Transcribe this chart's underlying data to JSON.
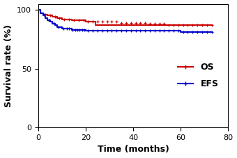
{
  "title": "",
  "xlabel": "Time (months)",
  "ylabel": "Survival rate (%)",
  "xlim": [
    0,
    80
  ],
  "ylim": [
    0,
    105
  ],
  "xticks": [
    0,
    20,
    40,
    60,
    80
  ],
  "yticks": [
    0,
    50,
    100
  ],
  "os_color": "#cc0000",
  "efs_color": "#0000cc",
  "os_km_x": [
    0,
    1,
    1,
    2,
    2,
    4,
    4,
    6,
    6,
    8,
    8,
    10,
    10,
    14,
    14,
    20,
    20,
    24,
    24,
    73
  ],
  "os_km_y": [
    100,
    100,
    97,
    97,
    96,
    96,
    95,
    95,
    94,
    94,
    93,
    93,
    92,
    92,
    91,
    91,
    90,
    90,
    87,
    87
  ],
  "efs_km_x": [
    0,
    1,
    1,
    2,
    2,
    3,
    3,
    4,
    4,
    5,
    5,
    6,
    6,
    7,
    7,
    8,
    8,
    10,
    10,
    14,
    14,
    20,
    20,
    60,
    60,
    73
  ],
  "efs_km_y": [
    100,
    100,
    97,
    97,
    95,
    95,
    93,
    93,
    91,
    91,
    90,
    90,
    88,
    88,
    87,
    87,
    85,
    85,
    84,
    84,
    83,
    83,
    82,
    82,
    81,
    81
  ],
  "os_censors_x": [
    3,
    5,
    7,
    9,
    11,
    13,
    15,
    17,
    19,
    21,
    23,
    25,
    27,
    29,
    31,
    33,
    35,
    37,
    39,
    41,
    43,
    45,
    47,
    49,
    51,
    53,
    55,
    57,
    59,
    61,
    63,
    65,
    67,
    69,
    71,
    73
  ],
  "os_censors_y": [
    96,
    95,
    94,
    93,
    92,
    92,
    91,
    91,
    91,
    90,
    90,
    90,
    90,
    90,
    90,
    90,
    89,
    89,
    89,
    89,
    89,
    89,
    88,
    88,
    88,
    88,
    87,
    87,
    87,
    87,
    87,
    87,
    87,
    87,
    87,
    87
  ],
  "efs_censors_x": [
    2.5,
    4.5,
    6.5,
    8.5,
    10.5,
    12,
    13,
    14.5,
    15.5,
    16.5,
    17.5,
    18.5,
    19.5,
    21,
    23,
    25,
    27,
    29,
    31,
    33,
    35,
    37,
    39,
    41,
    43,
    45,
    47,
    49,
    51,
    53,
    55,
    57,
    59,
    61,
    63,
    65,
    67,
    69,
    71,
    73
  ],
  "efs_censors_y": [
    96,
    91,
    89,
    85,
    84,
    84,
    84,
    83,
    83,
    83,
    83,
    83,
    83,
    82,
    82,
    82,
    82,
    82,
    82,
    82,
    82,
    82,
    82,
    82,
    82,
    82,
    82,
    82,
    82,
    82,
    82,
    82,
    82,
    81,
    81,
    81,
    81,
    81,
    81,
    81
  ],
  "legend_os": "OS",
  "legend_efs": "EFS",
  "bg_color": "#ffffff",
  "linewidth": 1.5,
  "fontsize_label": 9,
  "fontsize_tick": 8,
  "fontsize_legend": 9
}
